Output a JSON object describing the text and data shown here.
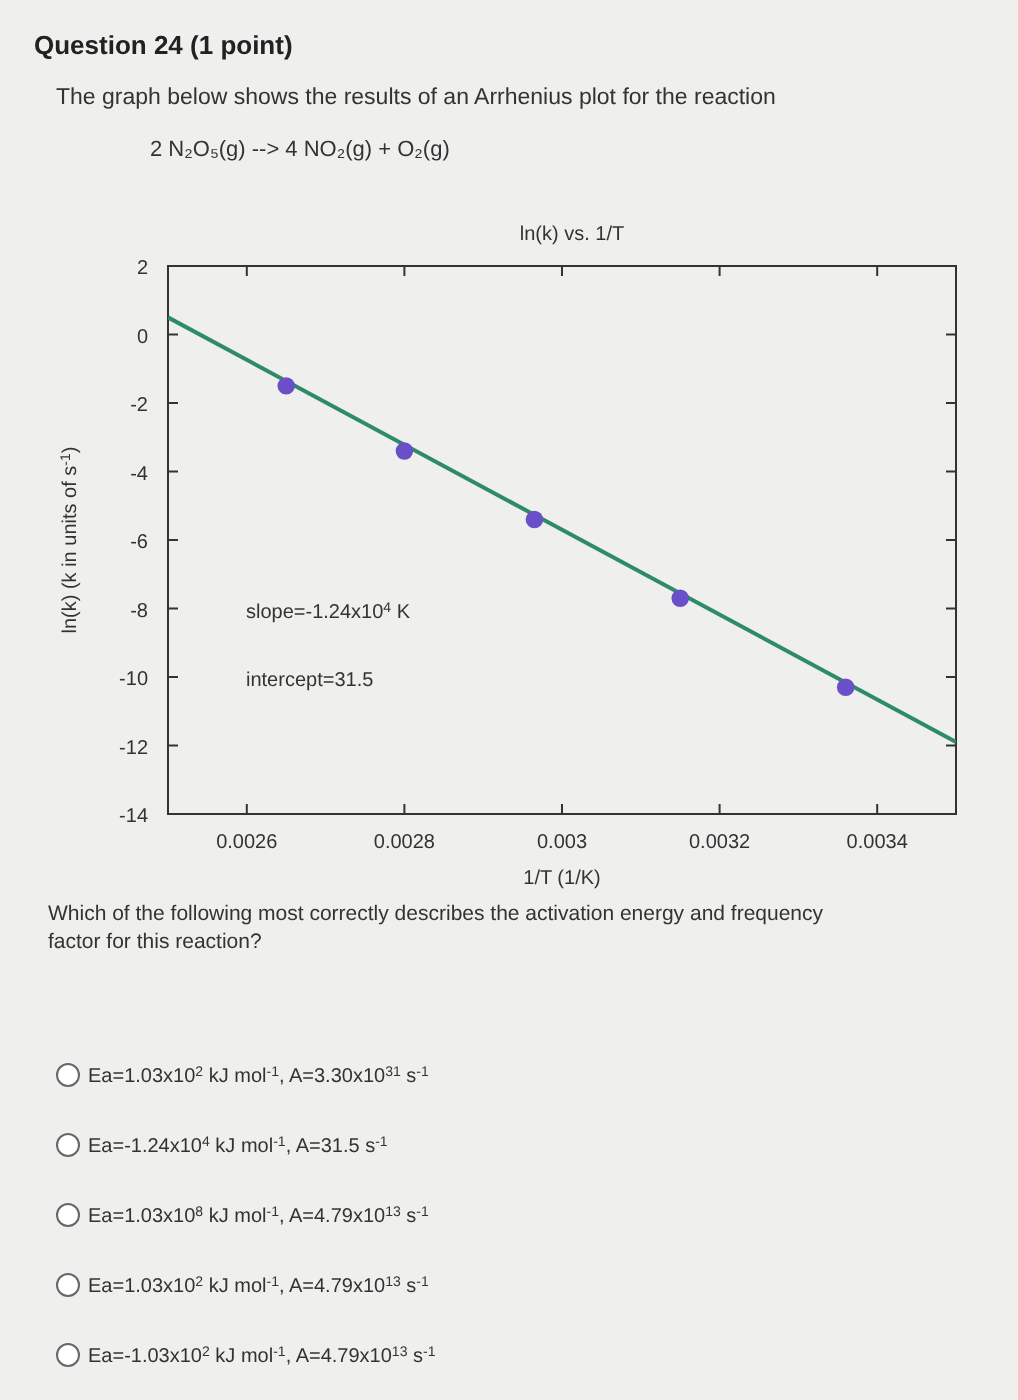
{
  "chart_data": {
    "type": "scatter",
    "title": "ln(k) vs. 1/T",
    "xlabel": "1/T (1/K)",
    "ylabel": "ln(k) (k in units of s$^{-1}$)",
    "xlim": [
      0.0025,
      0.0035
    ],
    "xticks": [
      0.0026,
      0.0028,
      0.003,
      0.0032,
      0.0034
    ],
    "ylim": [
      -14,
      2
    ],
    "yticks": [
      -14,
      -12,
      -10,
      -8,
      -6,
      -4,
      -2,
      0,
      2
    ],
    "grid": false,
    "series": [
      {
        "type": "line",
        "color": "#2e8b6a",
        "x": [
          0.0025,
          0.0035
        ],
        "values": [
          0.5,
          -11.9
        ]
      },
      {
        "marker": "circle",
        "color": "#6a4fc8",
        "x": [
          0.00265,
          0.0028,
          0.002965,
          0.00315,
          0.00336
        ],
        "values": [
          -1.5,
          -3.4,
          -5.4,
          -7.7,
          -10.3
        ]
      }
    ],
    "annotations": [
      "Question 24 (1 point)",
      "The graph below shows the results of an Arrhenius plot for the reaction",
      "2 N₂O₅(g) --> 4 NO₂(g) + O₂(g)",
      "slope=-1.24x10$^{4}$ K",
      "intercept=31.5",
      "Which of the following most correctly describes the activation energy and frequency factor for this reaction?",
      "Ea=1.03x10$^{2}$ kJ mol$^{-1}$, A=3.30x10$^{31}$ s$^{-1}$",
      "Ea=-1.24x10$^{4}$ kJ mol$^{-1}$, A=31.5 s$^{-1}$",
      "Ea=1.03x10$^{8}$ kJ mol$^{-1}$, A=4.79x10$^{13}$ s$^{-1}$",
      "Ea=1.03x10$^{2}$ kJ mol$^{-1}$, A=4.79x10$^{13}$ s$^{-1}$",
      "Ea=-1.03x10$^{2}$ kJ mol$^{-1}$, A=4.79x10$^{13}$ s$^{-1}$"
    ]
  }
}
